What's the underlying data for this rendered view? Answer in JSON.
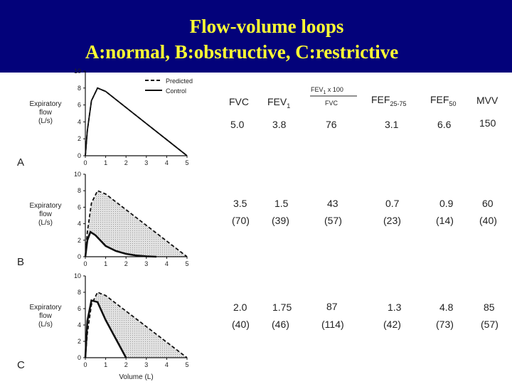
{
  "title": {
    "line1": "Flow-volume loops",
    "line2": "A:normal, B:obstructive, C:restrictive"
  },
  "legend": {
    "predicted": "Predicted",
    "control": "Control"
  },
  "axes": {
    "ylabel_lines": [
      "Expiratory",
      "flow",
      "(L/s)"
    ],
    "xlabel": "Volume (L)",
    "x_ticks": [
      "0",
      "1",
      "2",
      "3",
      "4",
      "5"
    ],
    "y_ticks": [
      "0",
      "2",
      "4",
      "6",
      "8",
      "10"
    ]
  },
  "table": {
    "headers": [
      "FVC",
      "FEV1",
      "FEV1 x 100 / FVC",
      "FEF25-75",
      "FEF50",
      "MVV"
    ],
    "rows": [
      {
        "panel": "A",
        "values": [
          "5.0",
          "3.8",
          "76",
          "3.1",
          "6.6",
          "150"
        ],
        "percent": []
      },
      {
        "panel": "B",
        "values": [
          "3.5",
          "1.5",
          "43",
          "0.7",
          "0.9",
          "60"
        ],
        "percent": [
          "(70)",
          "(39)",
          "(57)",
          "(23)",
          "(14)",
          "(40)"
        ]
      },
      {
        "panel": "C",
        "values": [
          "2.0",
          "1.75",
          "87",
          "1.3",
          "4.8",
          "85"
        ],
        "percent": [
          "(40)",
          "(46)",
          "(114)",
          "(42)",
          "(73)",
          "(57)"
        ]
      }
    ]
  },
  "chart_data": [
    {
      "type": "line",
      "panel": "A",
      "xlabel": "",
      "ylabel": "Expiratory flow (L/s)",
      "xlim": [
        0,
        5
      ],
      "ylim": [
        0,
        10
      ],
      "series": [
        {
          "name": "Predicted",
          "x": [
            0,
            0.1,
            0.3,
            0.6,
            1.0,
            2.0,
            3.0,
            4.0,
            5.0
          ],
          "y": [
            0,
            3.0,
            6.5,
            8.0,
            7.6,
            5.7,
            3.8,
            1.9,
            0
          ]
        },
        {
          "name": "Control",
          "x": [
            0,
            0.1,
            0.3,
            0.6,
            1.0,
            2.0,
            3.0,
            4.0,
            5.0
          ],
          "y": [
            0,
            3.0,
            6.5,
            8.0,
            7.6,
            5.7,
            3.8,
            1.9,
            0
          ]
        }
      ]
    },
    {
      "type": "line",
      "panel": "B",
      "xlabel": "",
      "ylabel": "Expiratory flow (L/s)",
      "xlim": [
        0,
        5
      ],
      "ylim": [
        0,
        10
      ],
      "series": [
        {
          "name": "Predicted",
          "x": [
            0,
            0.1,
            0.3,
            0.6,
            1.0,
            2.0,
            3.0,
            4.0,
            5.0
          ],
          "y": [
            0,
            3.0,
            6.5,
            8.0,
            7.6,
            5.7,
            3.8,
            1.9,
            0
          ]
        },
        {
          "name": "Control",
          "x": [
            0,
            0.1,
            0.25,
            0.5,
            1.0,
            1.5,
            2.0,
            2.5,
            3.0,
            3.5
          ],
          "y": [
            0,
            2.0,
            3.0,
            2.6,
            1.3,
            0.7,
            0.35,
            0.15,
            0.05,
            0
          ]
        }
      ]
    },
    {
      "type": "line",
      "panel": "C",
      "xlabel": "Volume (L)",
      "ylabel": "Expiratory flow (L/s)",
      "xlim": [
        0,
        5
      ],
      "ylim": [
        0,
        10
      ],
      "series": [
        {
          "name": "Predicted",
          "x": [
            0,
            0.1,
            0.3,
            0.6,
            1.0,
            2.0,
            3.0,
            4.0,
            5.0
          ],
          "y": [
            0,
            3.0,
            6.5,
            8.0,
            7.6,
            5.7,
            3.8,
            1.9,
            0
          ]
        },
        {
          "name": "Control",
          "x": [
            0,
            0.1,
            0.3,
            0.6,
            1.0,
            1.5,
            2.0
          ],
          "y": [
            0,
            4.5,
            7.0,
            6.8,
            4.6,
            2.3,
            0
          ]
        }
      ]
    }
  ],
  "colors": {
    "header_bg": "#03027a",
    "title": "#ffff33",
    "shade": "#d4d4d4",
    "ink": "#111111"
  }
}
